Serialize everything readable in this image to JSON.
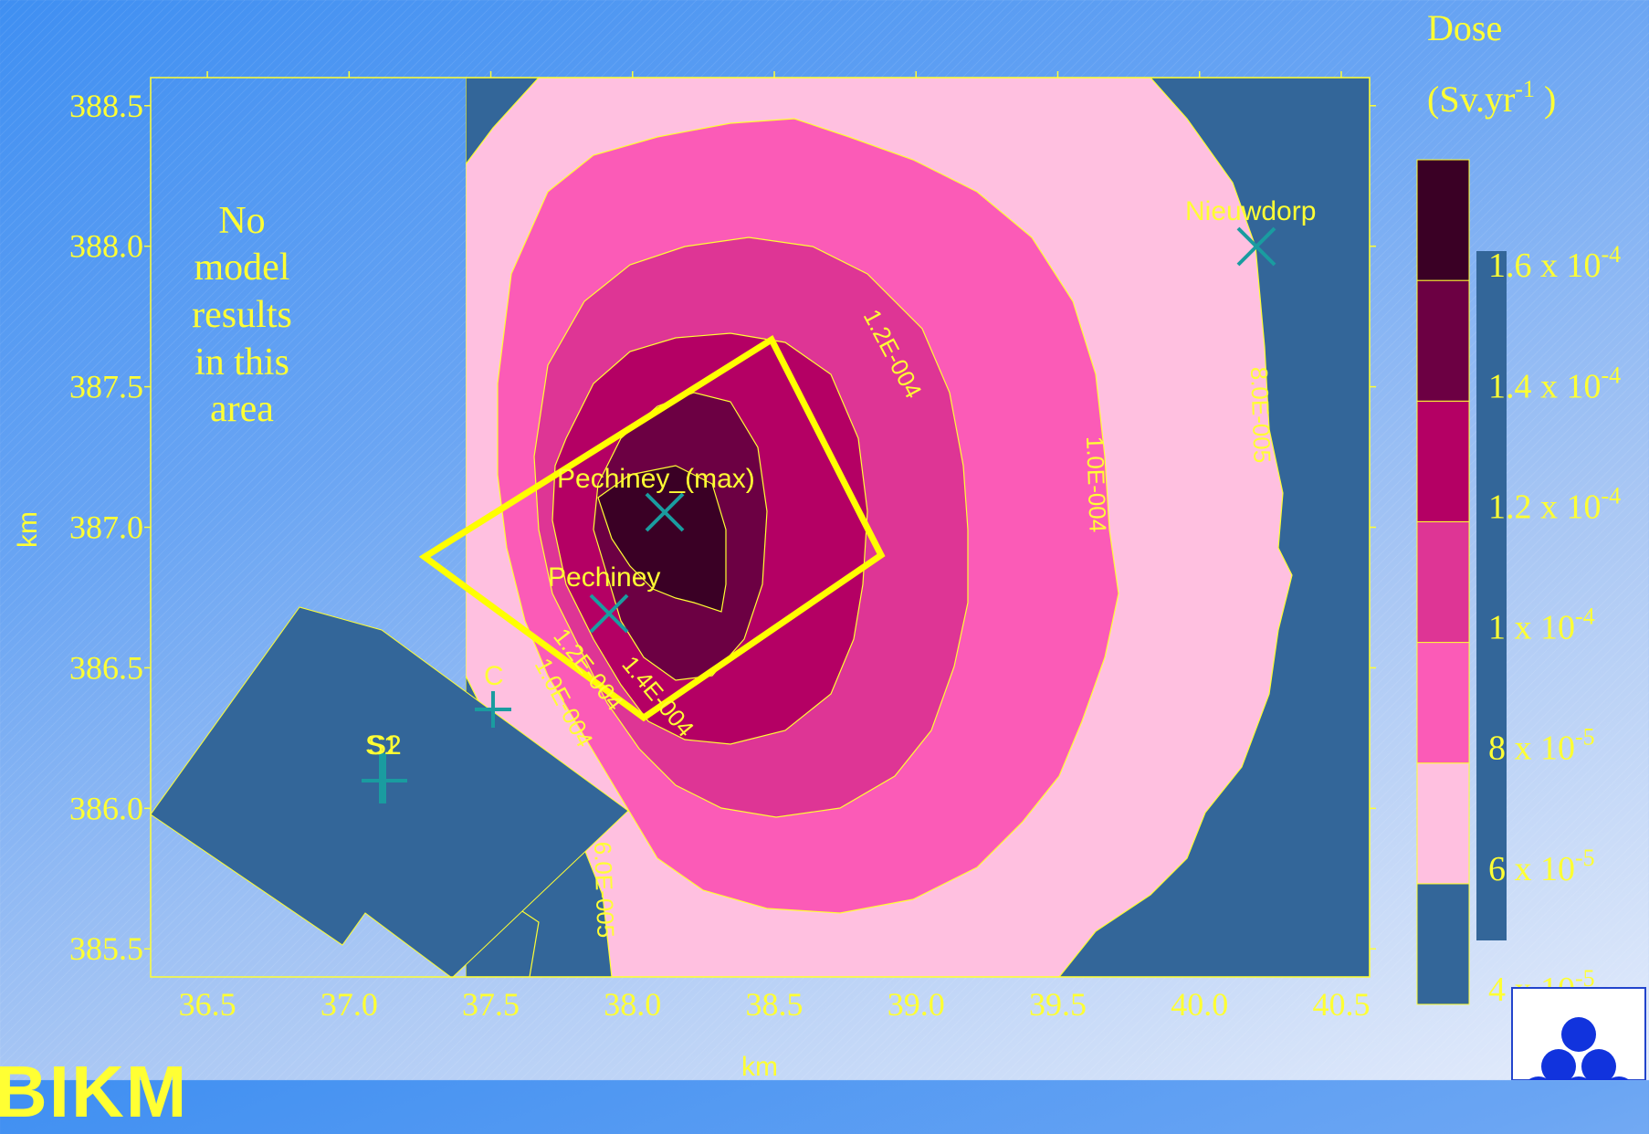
{
  "chart_data": {
    "type": "heatmap",
    "title": "",
    "xlabel": "km",
    "ylabel": "km",
    "xlim": [
      36.3,
      40.6
    ],
    "ylim": [
      385.4,
      388.6
    ],
    "x_ticks": [
      "36.5",
      "37.0",
      "37.5",
      "38.0",
      "38.5",
      "39.0",
      "39.5",
      "40.0",
      "40.5"
    ],
    "y_ticks": [
      "385.5",
      "386.0",
      "386.5",
      "387.0",
      "387.5",
      "388.0",
      "388.5"
    ],
    "colorbar": {
      "title": "Dose",
      "unit_base": "(Sv.yr",
      "unit_exp": "-1",
      "unit_close": " )",
      "colors": [
        "#336699",
        "#ffc0e0",
        "#fb5bb7",
        "#de3595",
        "#b40064",
        "#6c0043",
        "#3a0025"
      ],
      "labels": [
        {
          "mant": "4 x 10",
          "exp": "-5",
          "value": 4e-05
        },
        {
          "mant": "6 x 10",
          "exp": "-5",
          "value": 6e-05
        },
        {
          "mant": "8 x 10",
          "exp": "-5",
          "value": 8e-05
        },
        {
          "mant": "1 x 10",
          "exp": "-4",
          "value": 0.0001
        },
        {
          "mant": "1.2 x 10",
          "exp": "-4",
          "value": 0.00012
        },
        {
          "mant": "1.4 x 10",
          "exp": "-4",
          "value": 0.00014
        },
        {
          "mant": "1.6 x 10",
          "exp": "-4",
          "value": 0.00016
        }
      ]
    },
    "contour_labels": [
      "1.2E-004",
      "1.0E-004",
      "8.0E-005",
      "1.2E-004",
      "1.4E-004",
      "1.0E-004",
      "6.0E-005"
    ],
    "sites": [
      {
        "name": "Pechiney_(max)",
        "x": 38.1,
        "y": 387.05,
        "marker": "x"
      },
      {
        "name": "Pechiney",
        "x": 37.88,
        "y": 386.7,
        "marker": "x"
      },
      {
        "name": "Nieuwdorp",
        "x": 40.2,
        "y": 388.0,
        "marker": "x"
      },
      {
        "name": "S1",
        "x": 37.1,
        "y": 386.1,
        "marker": "+"
      },
      {
        "name": "S2",
        "x": 37.1,
        "y": 386.1,
        "marker": "+"
      },
      {
        "name": "C",
        "x": 37.48,
        "y": 386.37,
        "marker": "+"
      }
    ],
    "annotation": [
      "No",
      "model",
      "results",
      "in this",
      "area"
    ]
  },
  "brand_text": "BIKM"
}
